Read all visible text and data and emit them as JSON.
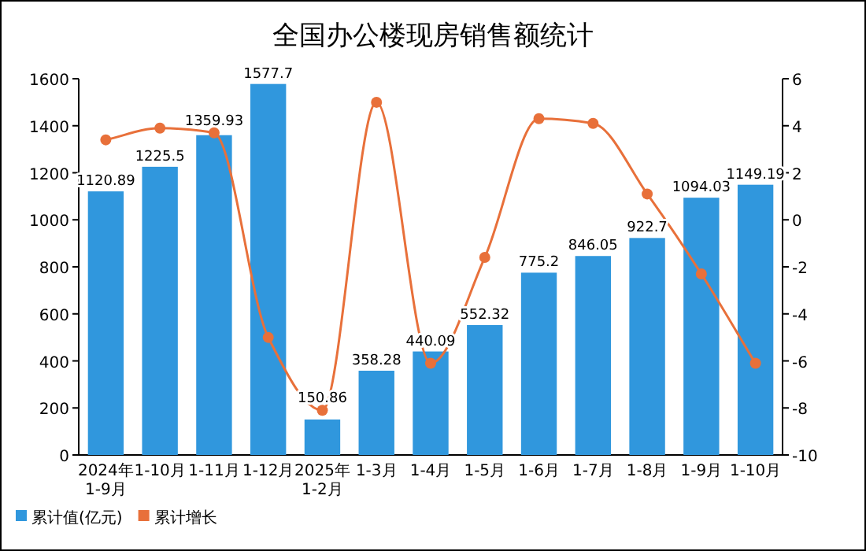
{
  "chart_data": {
    "type": "bar",
    "title": "全国办公楼现房销售额统计",
    "categories": [
      "2024年 1-9月",
      "1-10月",
      "1-11月",
      "1-12月",
      "2025年 1-2月",
      "1-3月",
      "1-4月",
      "1-5月",
      "1-6月",
      "1-7月",
      "1-8月",
      "1-9月",
      "1-10月"
    ],
    "series": [
      {
        "name": "累计值(亿元)",
        "color": "#3097dd",
        "values": [
          1120.89,
          1225.5,
          1359.93,
          1577.7,
          150.86,
          358.28,
          440.09,
          552.32,
          775.2,
          846.05,
          922.7,
          1094.03,
          1149.19
        ],
        "value_labels": [
          "1120.89",
          "1225.5",
          "1359.93",
          "1577.7",
          "150.86",
          "358.28",
          "440.09",
          "552.32",
          "775.2",
          "846.05",
          "922.7",
          "1094.03",
          "1149.19"
        ]
      },
      {
        "name": "累计增长",
        "type": "line",
        "axis": "y2",
        "color": "#e8703a",
        "marker": "circle",
        "values": [
          3.4,
          3.9,
          3.7,
          -5.0,
          -8.1,
          5.0,
          -6.1,
          -1.6,
          4.3,
          4.1,
          1.1,
          -2.3,
          -6.1
        ]
      }
    ],
    "ylim": [
      0,
      1600
    ],
    "yticks": [
      0,
      200,
      400,
      600,
      800,
      1000,
      1200,
      1400,
      1600
    ],
    "y2lim": [
      -10,
      6
    ],
    "y2ticks": [
      -10,
      -8,
      -6,
      -4,
      -2,
      0,
      2,
      4,
      6
    ],
    "grid": false,
    "legend": "bottom left"
  }
}
